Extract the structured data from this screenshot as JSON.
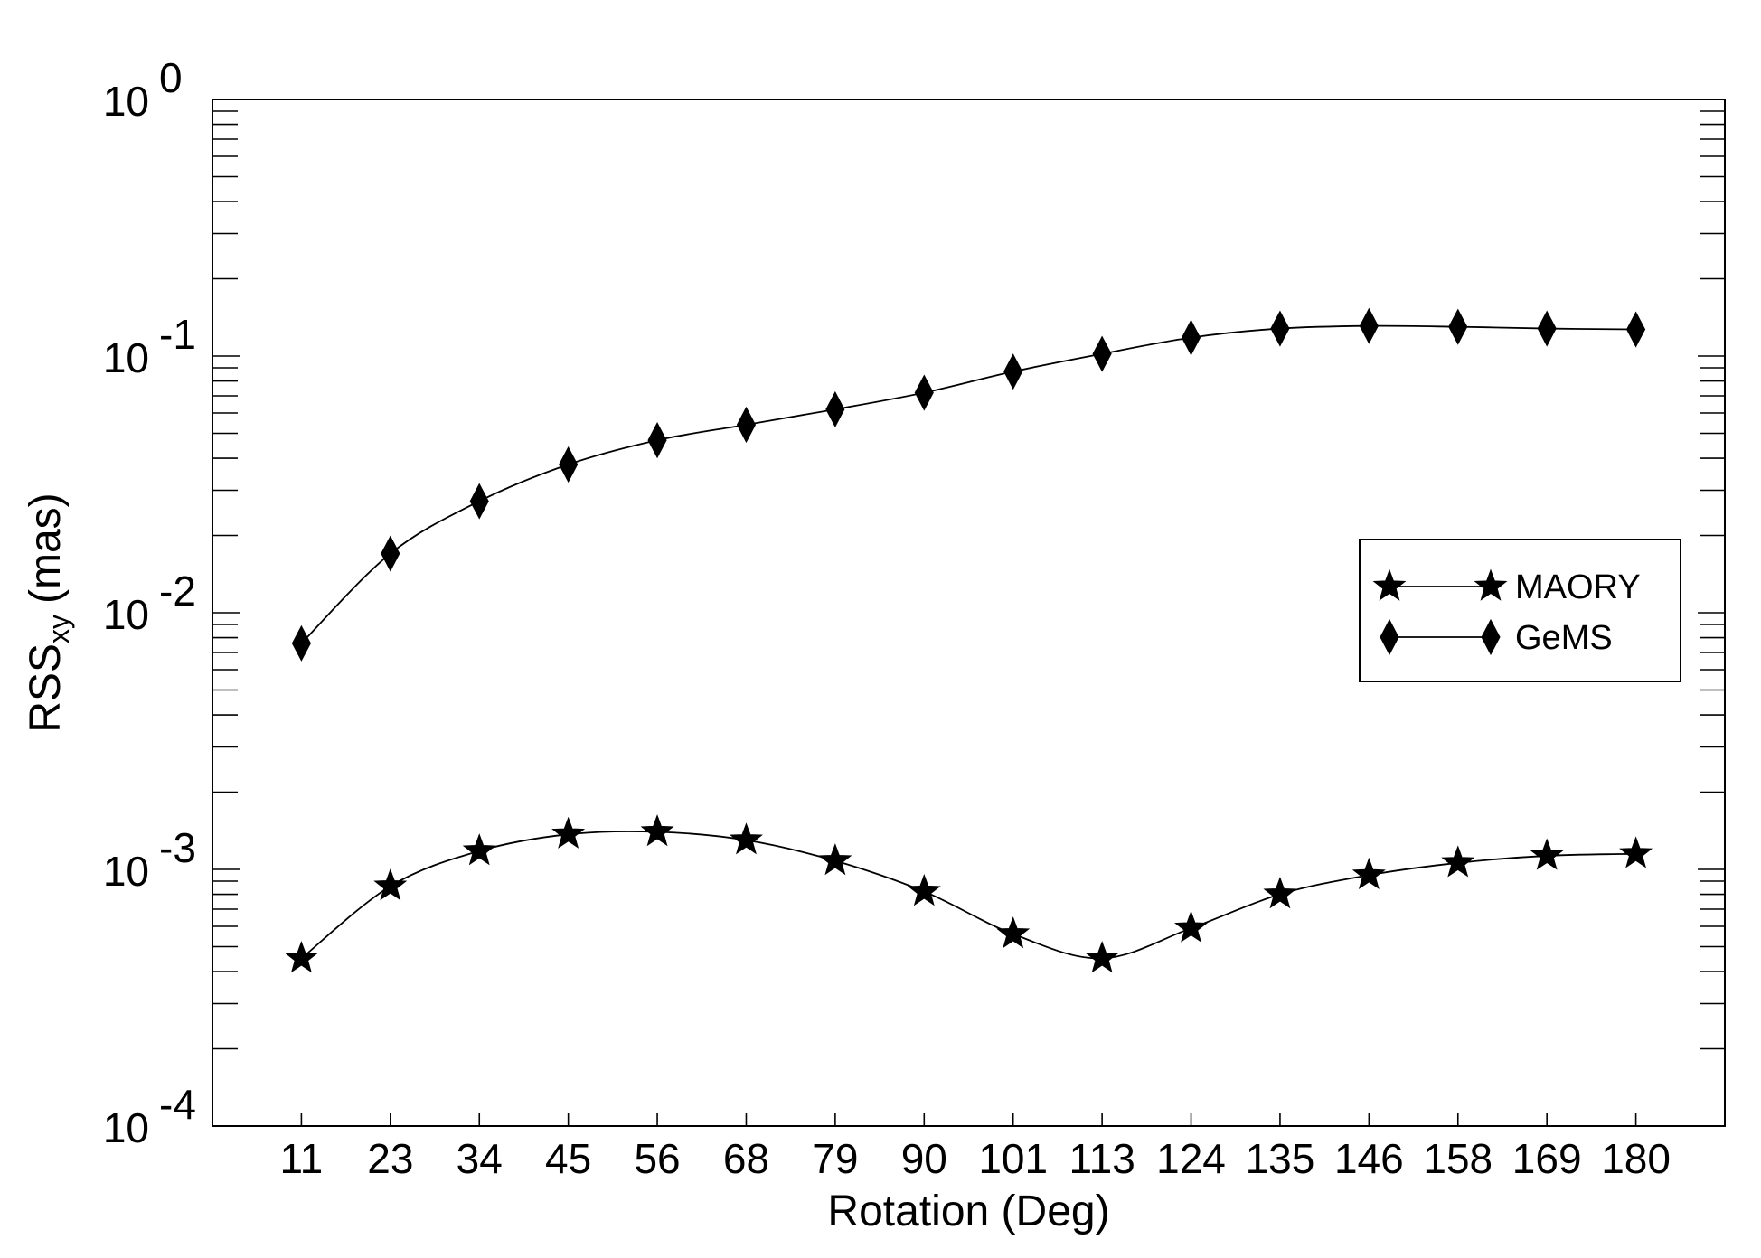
{
  "chart_data": {
    "type": "line",
    "xlabel": "Rotation (Deg)",
    "ylabel": {
      "main": "RSS",
      "sub": "xy",
      "unit": "(mas)"
    },
    "y_scale": "log",
    "ylim": [
      0.0001,
      1
    ],
    "y_ticks": [
      {
        "value": 1,
        "base": "10",
        "exp": "0"
      },
      {
        "value": 0.1,
        "base": "10",
        "exp": "-1"
      },
      {
        "value": 0.01,
        "base": "10",
        "exp": "-2"
      },
      {
        "value": 0.001,
        "base": "10",
        "exp": "-3"
      },
      {
        "value": 0.0001,
        "base": "10",
        "exp": "-4"
      }
    ],
    "categories": [
      "11",
      "23",
      "34",
      "45",
      "56",
      "68",
      "79",
      "90",
      "101",
      "113",
      "124",
      "135",
      "146",
      "158",
      "169",
      "180"
    ],
    "grid": false,
    "legend_position": "right",
    "series": [
      {
        "name": "MAORY",
        "marker": "star",
        "values": [
          0.00045,
          0.00086,
          0.00118,
          0.00137,
          0.0014,
          0.0013,
          0.00108,
          0.00082,
          0.00056,
          0.00045,
          0.00059,
          0.0008,
          0.00095,
          0.00106,
          0.00113,
          0.00115
        ]
      },
      {
        "name": "GeMS",
        "marker": "diamond",
        "values": [
          0.0076,
          0.017,
          0.0272,
          0.0378,
          0.047,
          0.054,
          0.062,
          0.072,
          0.087,
          0.102,
          0.118,
          0.128,
          0.131,
          0.13,
          0.128,
          0.127
        ]
      }
    ]
  }
}
